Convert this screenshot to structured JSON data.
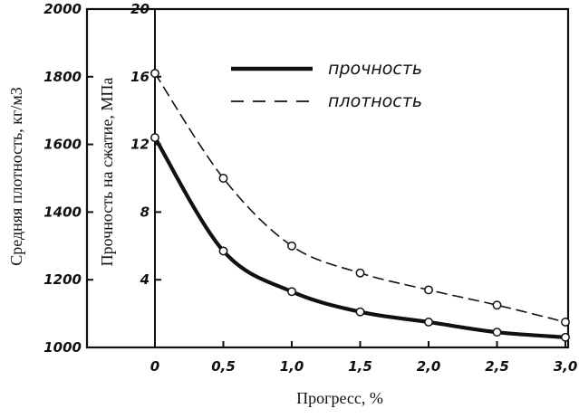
{
  "chart_data": {
    "type": "line",
    "x": [
      0,
      0.5,
      1.0,
      1.5,
      2.0,
      2.5,
      3.0
    ],
    "x_tick_labels": [
      "0",
      "0,5",
      "1,0",
      "1,5",
      "2,0",
      "2,5",
      "3,0"
    ],
    "xlabel": "Прогресс, %",
    "xlim": [
      0,
      3.0
    ],
    "y_left": {
      "label": "Средняя плотность, кг/м3",
      "ticks": [
        "1000",
        "1200",
        "1400",
        "1600",
        "1800",
        "2000"
      ],
      "lim": [
        1000,
        2000
      ]
    },
    "y_right": {
      "label": "Прочность на сжатие, МПа",
      "ticks": [
        "4",
        "8",
        "12",
        "16",
        "20"
      ],
      "lim": [
        0,
        20
      ]
    },
    "series": [
      {
        "name": "прочность",
        "style": "solid",
        "axis": "strength",
        "values": [
          12.4,
          5.7,
          3.3,
          2.1,
          1.5,
          0.9,
          0.6
        ]
      },
      {
        "name": "плотность",
        "style": "dashed",
        "axis": "strength",
        "values": [
          16.2,
          10.0,
          6.0,
          4.4,
          3.4,
          2.5,
          1.5
        ]
      }
    ],
    "legend_position": "top-right",
    "grid": false,
    "color": "#111111"
  }
}
